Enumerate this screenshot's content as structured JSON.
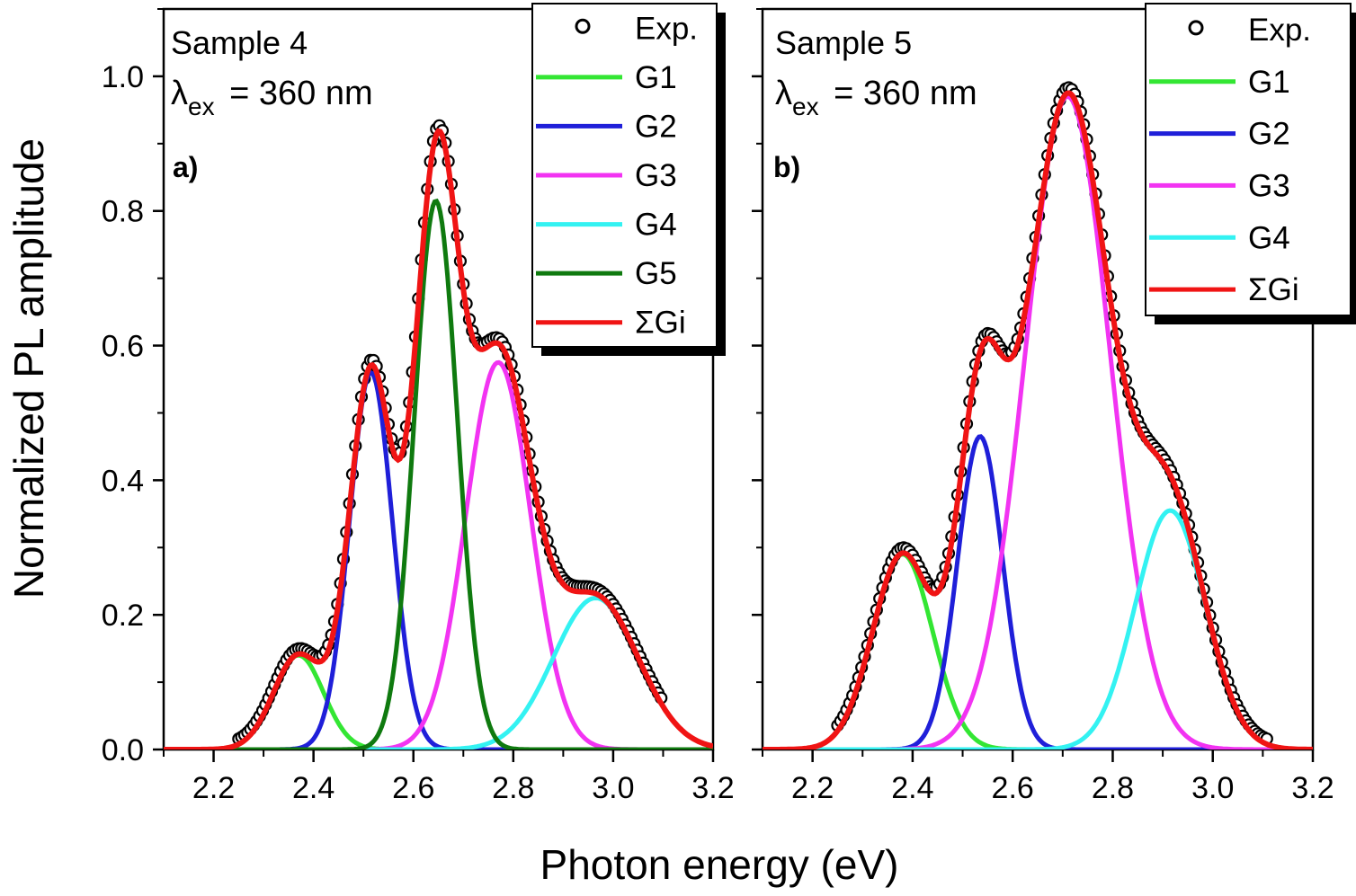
{
  "y_axis_label": "Normalized PL amplitude",
  "x_axis_label": "Photon energy (eV)",
  "chart_data": [
    {
      "type": "line",
      "panel_label": "a)",
      "title": "Sample 4",
      "excitation": {
        "symbol": "λ",
        "subscript": "ex",
        "value": "= 360 nm"
      },
      "xlim": [
        2.1,
        3.2
      ],
      "ylim": [
        0,
        1.1
      ],
      "xticks": [
        "2.2",
        "2.4",
        "2.6",
        "2.8",
        "3.0",
        "3.2"
      ],
      "yticks": [
        "0.0",
        "0.2",
        "0.4",
        "0.6",
        "0.8",
        "1.0"
      ],
      "legend": [
        "Exp.",
        "G1",
        "G2",
        "G3",
        "G4",
        "G5",
        "ΣGi"
      ],
      "colors": {
        "Exp.": "#000000",
        "G1": "#33e633",
        "G2": "#1f1fd9",
        "G3": "#f233f2",
        "G4": "#33f2f2",
        "G5": "#0f7a0f",
        "ΣGi": "#f01414"
      },
      "series": [
        {
          "name": "G1",
          "center": 2.37,
          "amplitude": 0.14,
          "sigma": 0.05
        },
        {
          "name": "G2",
          "center": 2.515,
          "amplitude": 0.56,
          "sigma": 0.043
        },
        {
          "name": "G3",
          "center": 2.77,
          "amplitude": 0.575,
          "sigma": 0.065
        },
        {
          "name": "G4",
          "center": 2.965,
          "amplitude": 0.225,
          "sigma": 0.085
        },
        {
          "name": "G5",
          "center": 2.645,
          "amplitude": 0.815,
          "sigma": 0.043
        }
      ],
      "exp_range": [
        2.25,
        3.1
      ],
      "exp_offset": 0.008
    },
    {
      "type": "line",
      "panel_label": "b)",
      "title": "Sample 5",
      "excitation": {
        "symbol": "λ",
        "subscript": "ex",
        "value": "= 360 nm"
      },
      "xlim": [
        2.1,
        3.2
      ],
      "ylim": [
        0,
        1.1
      ],
      "xticks": [
        "2.2",
        "2.4",
        "2.6",
        "2.8",
        "3.0",
        "3.2"
      ],
      "yticks": [],
      "legend": [
        "Exp.",
        "G1",
        "G2",
        "G3",
        "G4",
        "ΣGi"
      ],
      "colors": {
        "Exp.": "#000000",
        "G1": "#33e633",
        "G2": "#1f1fd9",
        "G3": "#f233f2",
        "G4": "#33f2f2",
        "ΣGi": "#f01414"
      },
      "series": [
        {
          "name": "G1",
          "center": 2.38,
          "amplitude": 0.29,
          "sigma": 0.06
        },
        {
          "name": "G2",
          "center": 2.535,
          "amplitude": 0.465,
          "sigma": 0.045
        },
        {
          "name": "G3",
          "center": 2.71,
          "amplitude": 0.97,
          "sigma": 0.085
        },
        {
          "name": "G4",
          "center": 2.915,
          "amplitude": 0.355,
          "sigma": 0.07
        }
      ],
      "exp_range": [
        2.25,
        3.11
      ],
      "exp_offset": 0.008
    }
  ]
}
